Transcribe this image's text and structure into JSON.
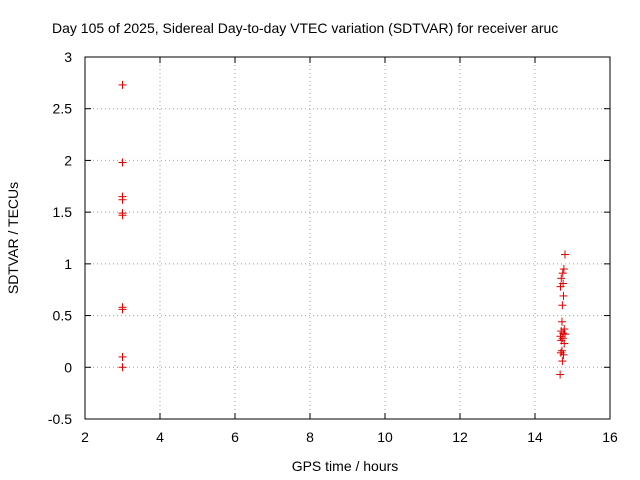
{
  "chart_data": {
    "type": "scatter",
    "title": "Day 105 of 2025, Sidereal Day-to-day VTEC variation (SDTVAR) for receiver aruc",
    "xlabel": "GPS time / hours",
    "ylabel": "SDTVAR / TECUs",
    "xlim": [
      2,
      16
    ],
    "ylim": [
      -0.5,
      3
    ],
    "xticks": [
      2,
      4,
      6,
      8,
      10,
      12,
      14,
      16
    ],
    "yticks": [
      -0.5,
      0,
      0.5,
      1,
      1.5,
      2,
      2.5,
      3
    ],
    "xtick_labels": [
      "2",
      "4",
      "6",
      "8",
      "10",
      "12",
      "14",
      "16"
    ],
    "ytick_labels": [
      "-0.5",
      "0",
      "0.5",
      "1",
      "1.5",
      "2",
      "2.5",
      "3"
    ],
    "grid": true,
    "marker": "+",
    "color": "#e00000",
    "series": [
      {
        "name": "SDTVAR",
        "points": [
          [
            3.0,
            2.73
          ],
          [
            3.0,
            1.98
          ],
          [
            3.0,
            1.65
          ],
          [
            3.0,
            1.62
          ],
          [
            3.0,
            1.49
          ],
          [
            3.0,
            1.47
          ],
          [
            3.0,
            0.58
          ],
          [
            3.0,
            0.56
          ],
          [
            3.0,
            0.1
          ],
          [
            3.0,
            0.0
          ],
          [
            14.8,
            1.09
          ],
          [
            14.77,
            0.95
          ],
          [
            14.74,
            0.91
          ],
          [
            14.7,
            0.86
          ],
          [
            14.75,
            0.81
          ],
          [
            14.68,
            0.78
          ],
          [
            14.76,
            0.69
          ],
          [
            14.73,
            0.6
          ],
          [
            14.72,
            0.44
          ],
          [
            14.78,
            0.37
          ],
          [
            14.7,
            0.35
          ],
          [
            14.75,
            0.33
          ],
          [
            14.8,
            0.32
          ],
          [
            14.68,
            0.3
          ],
          [
            14.74,
            0.28
          ],
          [
            14.7,
            0.26
          ],
          [
            14.78,
            0.23
          ],
          [
            14.72,
            0.16
          ],
          [
            14.69,
            0.14
          ],
          [
            14.76,
            0.12
          ],
          [
            14.73,
            0.06
          ],
          [
            14.67,
            -0.07
          ]
        ]
      }
    ]
  }
}
